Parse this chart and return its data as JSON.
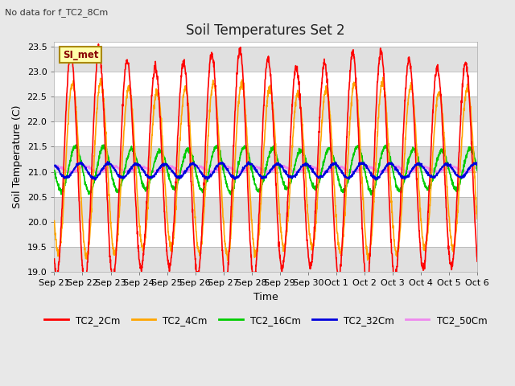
{
  "title": "Soil Temperatures Set 2",
  "subtitle": "No data for f_TC2_8Cm",
  "xlabel": "Time",
  "ylabel": "Soil Temperature (C)",
  "ylim": [
    19.0,
    23.6
  ],
  "yticks": [
    19.0,
    19.5,
    20.0,
    20.5,
    21.0,
    21.5,
    22.0,
    22.5,
    23.0,
    23.5
  ],
  "bg_color": "#e8e8e8",
  "plot_bg_color": "#ffffff",
  "band_color": "#e0e0e0",
  "grid_color": "#aaaaaa",
  "series": {
    "TC2_2Cm": {
      "color": "#ff0000",
      "lw": 1.2
    },
    "TC2_4Cm": {
      "color": "#ffa500",
      "lw": 1.2
    },
    "TC2_16Cm": {
      "color": "#00cc00",
      "lw": 1.2
    },
    "TC2_32Cm": {
      "color": "#0000dd",
      "lw": 1.2
    },
    "TC2_50Cm": {
      "color": "#ee88ee",
      "lw": 1.2
    }
  },
  "legend_label": "SI_met",
  "legend_bg": "#ffffaa",
  "legend_border": "#aa8800",
  "tick_labels": [
    "Sep 21",
    "Sep 22",
    "Sep 23",
    "Sep 24",
    "Sep 25",
    "Sep 26",
    "Sep 27",
    "Sep 28",
    "Sep 29",
    "Sep 30",
    "Oct 1",
    "Oct 2",
    "Oct 3",
    "Oct 4",
    "Oct 5",
    "Oct 6"
  ],
  "total_hours": 360,
  "period": 24.0
}
